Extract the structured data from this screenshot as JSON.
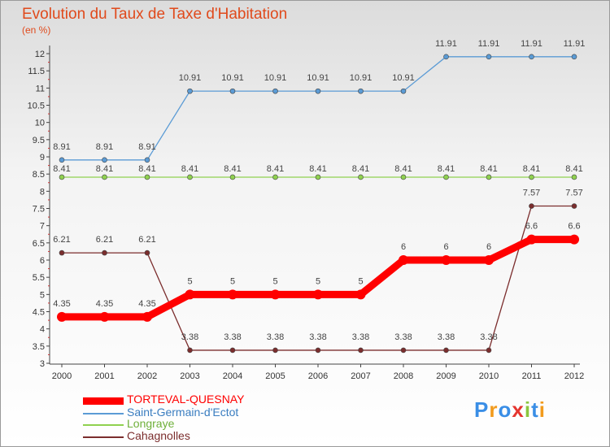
{
  "title": "Evolution du Taux de Taxe d'Habitation",
  "subtitle": "(en %)",
  "colors": {
    "title": "#e04a1c",
    "axis": "#444444",
    "tick_text": "#333333",
    "label_text": "#444444"
  },
  "chart_data": {
    "type": "line",
    "title": "Evolution du Taux de Taxe d'Habitation",
    "ylabel": "(en %)",
    "xlabel": "",
    "ylim": [
      3,
      12
    ],
    "yticks": [
      "3",
      "3.5",
      "4",
      "4.5",
      "5",
      "5.5",
      "6",
      "6.5",
      "7",
      "7.5",
      "8",
      "8.5",
      "9",
      "9.5",
      "10",
      "10.5",
      "11",
      "11.5",
      "12"
    ],
    "categories": [
      "2000",
      "2001",
      "2002",
      "2003",
      "2004",
      "2005",
      "2006",
      "2007",
      "2008",
      "2009",
      "2010",
      "2011",
      "2012"
    ],
    "grid": false,
    "legend_position": "bottom-left",
    "series": [
      {
        "name": "TORTEVAL-QUESNAY",
        "color": "#ff0000",
        "values": [
          4.35,
          4.35,
          4.35,
          5,
          5,
          5,
          5,
          5,
          6,
          6,
          6,
          6.6,
          6.6
        ],
        "labels": [
          "4.35",
          "4.35",
          "4.35",
          "5",
          "5",
          "5",
          "5",
          "5",
          "6",
          "6",
          "6",
          "6.6",
          "6.6"
        ]
      },
      {
        "name": "Saint-Germain-d'Ectot",
        "color": "#5b9bd5",
        "values": [
          8.91,
          8.91,
          8.91,
          10.91,
          10.91,
          10.91,
          10.91,
          10.91,
          10.91,
          11.91,
          11.91,
          11.91,
          11.91
        ],
        "labels": [
          "8.91",
          "8.91",
          "8.91",
          "10.91",
          "10.91",
          "10.91",
          "10.91",
          "10.91",
          "10.91",
          "11.91",
          "11.91",
          "11.91",
          "11.91"
        ]
      },
      {
        "name": "Longraye",
        "color": "#8fd14f",
        "values": [
          8.41,
          8.41,
          8.41,
          8.41,
          8.41,
          8.41,
          8.41,
          8.41,
          8.41,
          8.41,
          8.41,
          8.41,
          8.41
        ],
        "labels": [
          "8.41",
          "8.41",
          "8.41",
          "8.41",
          "8.41",
          "8.41",
          "8.41",
          "8.41",
          "8.41",
          "8.41",
          "8.41",
          "8.41",
          "8.41"
        ]
      },
      {
        "name": "Cahagnolles",
        "color": "#7b2d2d",
        "values": [
          6.21,
          6.21,
          6.21,
          3.38,
          3.38,
          3.38,
          3.38,
          3.38,
          3.38,
          3.38,
          3.38,
          7.57,
          7.57
        ],
        "labels": [
          "6.21",
          "6.21",
          "6.21",
          "3.38",
          "3.38",
          "3.38",
          "3.38",
          "3.38",
          "3.38",
          "3.38",
          "3.38",
          "7.57",
          "7.57"
        ]
      }
    ]
  },
  "logo": {
    "letters": [
      {
        "char": "P",
        "color": "#3a8ee6"
      },
      {
        "char": "r",
        "color": "#f29b1d"
      },
      {
        "char": "o",
        "color": "#3a8ee6"
      },
      {
        "char": "x",
        "color": "#e5352f"
      },
      {
        "char": "i",
        "color": "#8cc63f"
      },
      {
        "char": "t",
        "color": "#3a8ee6"
      },
      {
        "char": "i",
        "color": "#f29b1d"
      }
    ]
  }
}
